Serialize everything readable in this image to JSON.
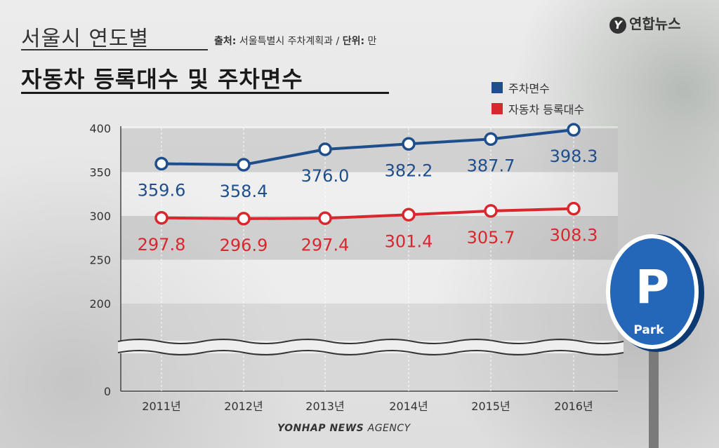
{
  "header": {
    "title_line1": "서울시 연도별",
    "source_label": "출처:",
    "source_value": "서울특별시 주차계획과",
    "unit_label": "단위:",
    "unit_value": "만",
    "separator": "/",
    "title_line2": "자동차 등록대수 및 주차면수"
  },
  "logo": {
    "mark": "Y",
    "text": "연합뉴스"
  },
  "footer": {
    "brand": "YONHAP NEWS",
    "agency": "AGENCY"
  },
  "sign": {
    "letter": "P",
    "word": "Park"
  },
  "colors": {
    "parking": "#1f4e8c",
    "cars": "#d9272e"
  },
  "chart_data": {
    "type": "line",
    "categories": [
      "2011년",
      "2012년",
      "2013년",
      "2014년",
      "2015년",
      "2016년"
    ],
    "series": [
      {
        "name": "주차면수",
        "values": [
          359.6,
          358.4,
          376.0,
          382.2,
          387.7,
          398.3
        ]
      },
      {
        "name": "자동차 등록대수",
        "values": [
          297.8,
          296.9,
          297.4,
          301.4,
          305.7,
          308.3
        ]
      }
    ],
    "value_labels": [
      [
        "359.6",
        "358.4",
        "376.0",
        "382.2",
        "387.7",
        "398.3"
      ],
      [
        "297.8",
        "296.9",
        "297.4",
        "301.4",
        "305.7",
        "308.3"
      ]
    ],
    "y_ticks": [
      "400",
      "350",
      "300",
      "250",
      "200",
      "0"
    ],
    "y_tick_values": [
      400,
      350,
      300,
      250,
      200,
      0
    ],
    "ylim": [
      200,
      400
    ],
    "axis_break": true,
    "legend_position": "top-right",
    "grid": true
  }
}
